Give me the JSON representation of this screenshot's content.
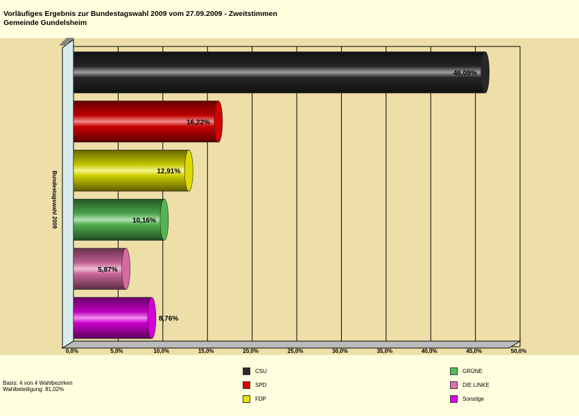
{
  "header": {
    "title_line1": "Vorläufiges Ergebnis zur Bundestagswahl 2009 vom 27.09.2009 - Zweitstimmen",
    "title_line2": "Gemeinde Gundelsheim"
  },
  "chart_data": {
    "type": "bar",
    "orientation": "horizontal",
    "category_label": "Bundestagswahl 2009",
    "xlim": [
      0,
      50
    ],
    "x_ticks": [
      "0,0%",
      "5,0%",
      "10,0%",
      "15,0%",
      "20,0%",
      "25,0%",
      "30,0%",
      "35,0%",
      "40,0%",
      "45,0%",
      "50,0%"
    ],
    "grid": true,
    "series": [
      {
        "name": "CSU",
        "value": 46.09,
        "label": "46,09%",
        "color": "#2A2A2A",
        "label_color": "#FFFFFF"
      },
      {
        "name": "SPD",
        "value": 16.22,
        "label": "16,22%",
        "color": "#E00000",
        "label_color": "#000000"
      },
      {
        "name": "FDP",
        "value": 12.91,
        "label": "12,91%",
        "color": "#E6E600",
        "label_color": "#000000"
      },
      {
        "name": "GRÜNE",
        "value": 10.16,
        "label": "10,16%",
        "color": "#55C055",
        "label_color": "#000000"
      },
      {
        "name": "DIE LINKE",
        "value": 5.87,
        "label": "5,87%",
        "color": "#E070A8",
        "label_color": "#000000"
      },
      {
        "name": "Sonstige",
        "value": 8.76,
        "label": "8,76%",
        "color": "#E000E0",
        "label_color": "#000000"
      }
    ]
  },
  "footer": {
    "basis": "Basis: 4 von 4 Wahlbezirken",
    "turnout": "Wahlbeteiligung: 81,02%"
  }
}
